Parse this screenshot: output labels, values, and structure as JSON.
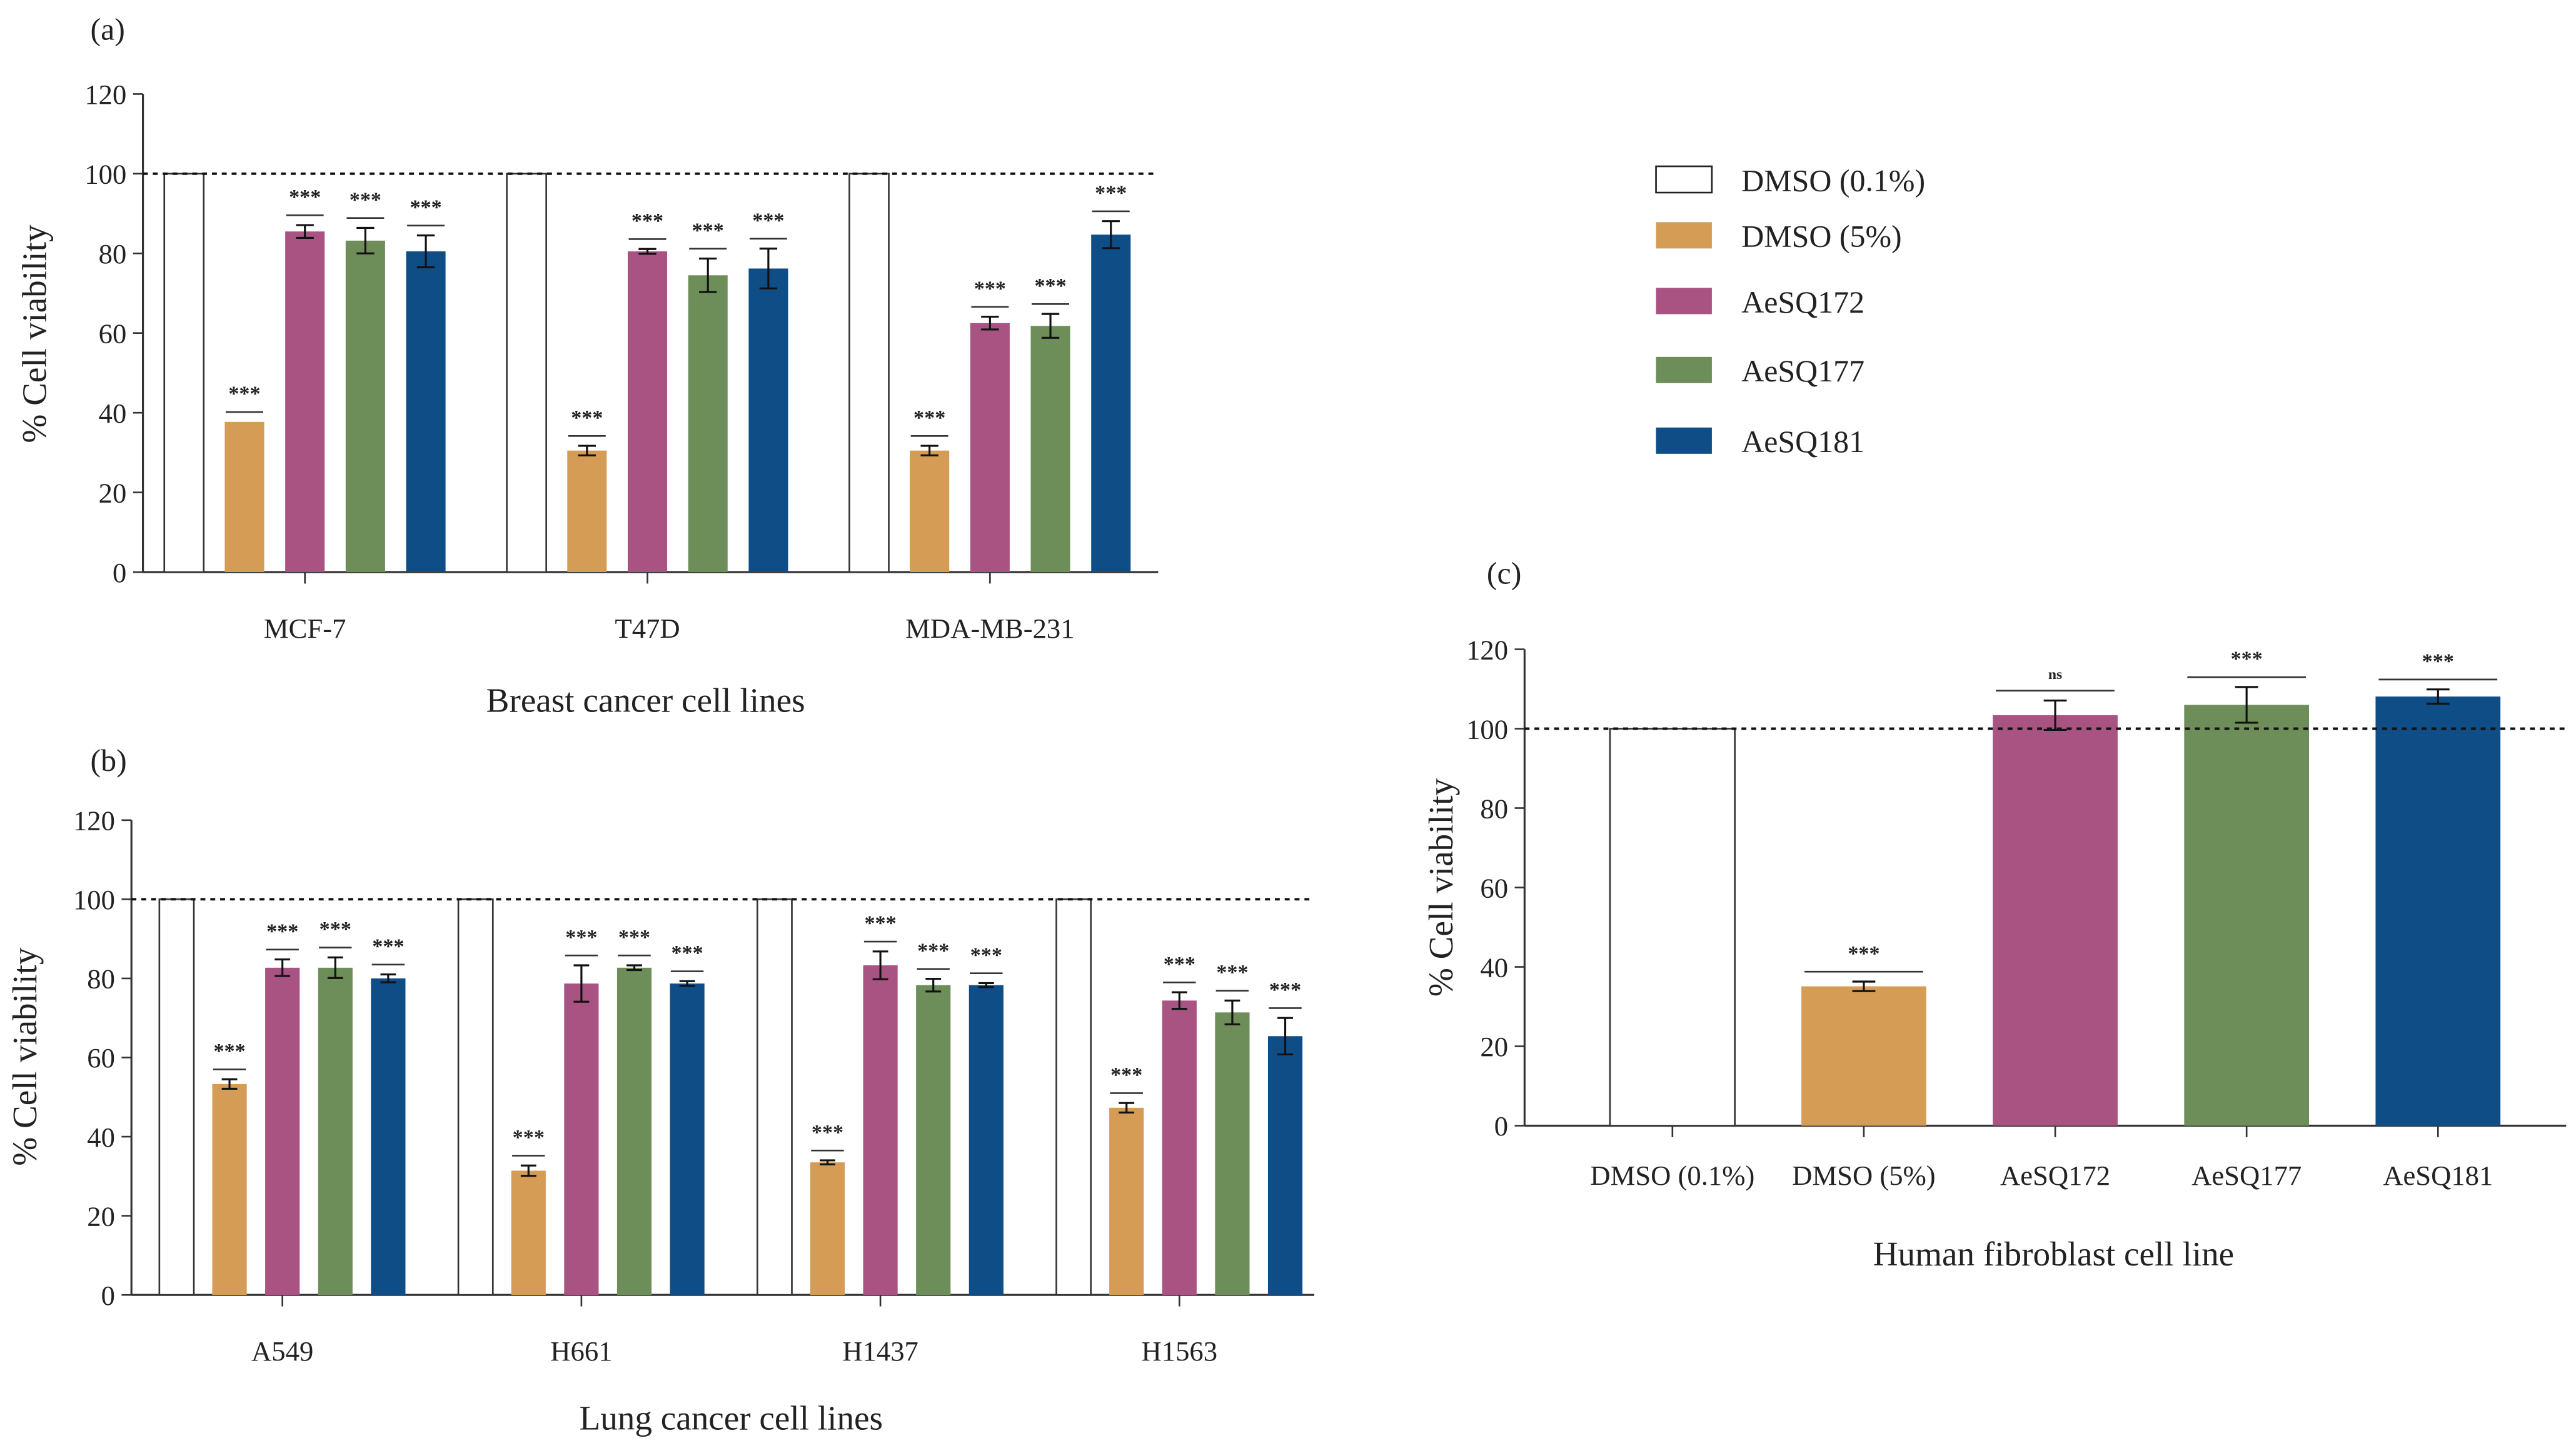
{
  "legend": [
    {
      "label": "DMSO (0.1%)",
      "color": "#ffffff"
    },
    {
      "label": "DMSO (5%)",
      "color": "#d49c55"
    },
    {
      "label": "AeSQ172",
      "color": "#a85382"
    },
    {
      "label": "AeSQ177",
      "color": "#6e8e59"
    },
    {
      "label": "AeSQ181",
      "color": "#0f4d86"
    }
  ],
  "chart_data": [
    {
      "panel": "(a)",
      "type": "bar",
      "title": "",
      "xlabel": "Breast cancer cell lines",
      "ylabel": "% Cell viability",
      "ylim": [
        0,
        120
      ],
      "yticks": [
        "0",
        "20",
        "40",
        "60",
        "80",
        "100",
        "120"
      ],
      "reference_line": 100,
      "categories": [
        "MCF-7",
        "T47D",
        "MDA-MB-231"
      ],
      "series": [
        {
          "name": "DMSO (0.1%)",
          "values": [
            100,
            100,
            100
          ],
          "errors": [
            0,
            0,
            0
          ],
          "sig": [
            "",
            "",
            ""
          ]
        },
        {
          "name": "DMSO (5%)",
          "values": [
            37.7,
            30.5,
            30.5
          ],
          "errors": [
            0,
            1.2,
            1.2
          ],
          "sig": [
            "***",
            "***",
            "***"
          ]
        },
        {
          "name": "AeSQ172",
          "values": [
            85.5,
            80.5,
            62.5
          ],
          "errors": [
            1.6,
            0.6,
            1.6
          ],
          "sig": [
            "***",
            "***",
            "***"
          ]
        },
        {
          "name": "AeSQ177",
          "values": [
            83.2,
            74.5,
            61.8
          ],
          "errors": [
            3.2,
            4.2,
            3.0
          ],
          "sig": [
            "***",
            "***",
            "***"
          ]
        },
        {
          "name": "AeSQ181",
          "values": [
            80.5,
            76.2,
            84.7
          ],
          "errors": [
            4.0,
            5.0,
            3.4
          ],
          "sig": [
            "***",
            "***",
            "***"
          ]
        }
      ]
    },
    {
      "panel": "(b)",
      "type": "bar",
      "title": "",
      "xlabel": "Lung cancer cell lines",
      "ylabel": "% Cell viability",
      "ylim": [
        0,
        120
      ],
      "yticks": [
        "0",
        "20",
        "40",
        "60",
        "80",
        "100",
        "120"
      ],
      "reference_line": 100,
      "categories": [
        "A549",
        "H661",
        "H1437",
        "H1563"
      ],
      "series": [
        {
          "name": "DMSO (0.1%)",
          "values": [
            100,
            100,
            100,
            100
          ],
          "errors": [
            0,
            0,
            0,
            0
          ],
          "sig": [
            "",
            "",
            "",
            ""
          ]
        },
        {
          "name": "DMSO (5%)",
          "values": [
            53.3,
            31.4,
            33.5,
            47.3
          ],
          "errors": [
            1.2,
            1.3,
            0.5,
            1.2
          ],
          "sig": [
            "***",
            "***",
            "***",
            "***"
          ]
        },
        {
          "name": "AeSQ172",
          "values": [
            82.7,
            78.7,
            83.3,
            74.4
          ],
          "errors": [
            2.1,
            4.6,
            3.5,
            2.1
          ],
          "sig": [
            "***",
            "***",
            "***",
            "***"
          ]
        },
        {
          "name": "AeSQ177",
          "values": [
            82.7,
            82.7,
            78.3,
            71.4
          ],
          "errors": [
            2.6,
            0.6,
            1.6,
            3.0
          ],
          "sig": [
            "***",
            "***",
            "***",
            "***"
          ]
        },
        {
          "name": "AeSQ181",
          "values": [
            80.0,
            78.7,
            78.3,
            65.4
          ],
          "errors": [
            1.0,
            0.6,
            0.5,
            4.6
          ],
          "sig": [
            "***",
            "***",
            "***",
            "***"
          ]
        }
      ]
    },
    {
      "panel": "(c)",
      "type": "bar",
      "title": "",
      "xlabel": "Human fibroblast cell line",
      "ylabel": "% Cell viability",
      "ylim": [
        0,
        120
      ],
      "yticks": [
        "0",
        "20",
        "40",
        "60",
        "80",
        "100",
        "120"
      ],
      "reference_line": 100,
      "categories": [
        "DMSO (0.1%)",
        "DMSO (5%)",
        "AeSQ172",
        "AeSQ177",
        "AeSQ181"
      ],
      "values": [
        100,
        35.1,
        103.4,
        106.0,
        108.1
      ],
      "errors": [
        0,
        1.2,
        3.7,
        4.5,
        1.8
      ],
      "sig": [
        "",
        "***",
        "ns",
        "***",
        "***"
      ]
    }
  ]
}
